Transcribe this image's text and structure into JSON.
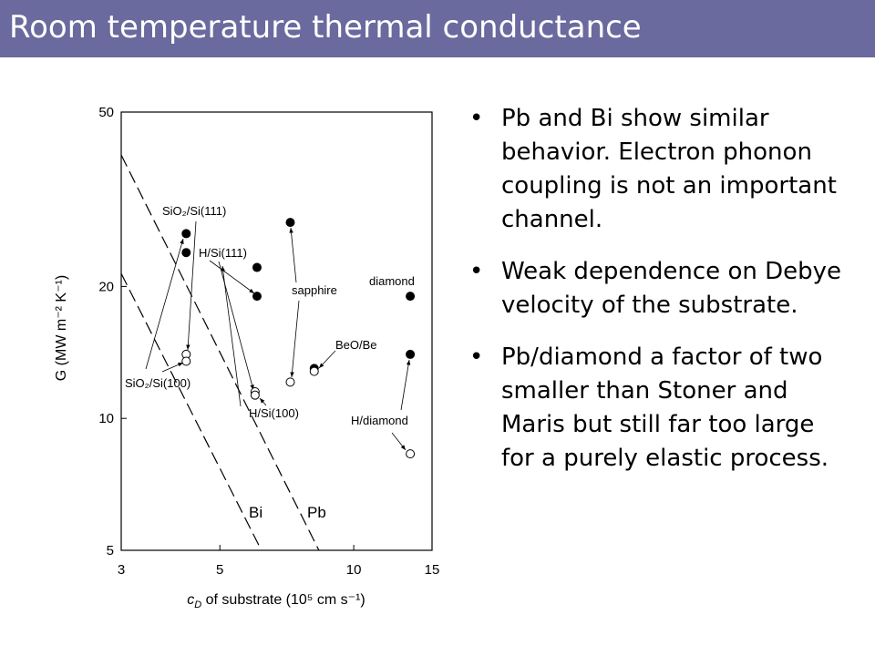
{
  "slide": {
    "title": "Room temperature thermal conductance",
    "bullets": [
      "Pb and Bi show similar behavior.  Electron phonon coupling is not an important channel.",
      "Weak dependence on Debye velocity of the substrate.",
      "Pb/diamond a factor of two smaller than Stoner and Maris but still far too large for a purely elastic process."
    ]
  },
  "chart_data": {
    "type": "scatter",
    "x_label": {
      "symbol": "c",
      "sub": "D",
      "text": " of substrate (10⁵ cm s⁻¹)"
    },
    "y_label": "G (MW m⁻² K⁻¹)",
    "xlog": true,
    "ylog": true,
    "xlim": [
      3,
      15
    ],
    "ylim": [
      5,
      50
    ],
    "xticks": [
      3,
      5,
      10,
      15
    ],
    "yticks": [
      5,
      10,
      20,
      50
    ],
    "series": [
      {
        "marker": "filled",
        "color": "#000000",
        "x": [
          4.2,
          4.2,
          6.06,
          6.06,
          7.2,
          8.15,
          13.4,
          13.4
        ],
        "values": [
          26.4,
          23.9,
          22.1,
          19.0,
          28.0,
          13.0,
          19.0,
          14.0
        ]
      },
      {
        "marker": "open",
        "color": "#000000",
        "x": [
          4.2,
          4.2,
          6.0,
          6.0,
          7.2,
          8.15,
          13.4
        ],
        "values": [
          14.0,
          13.5,
          11.5,
          11.3,
          12.1,
          12.8,
          8.3
        ]
      },
      {
        "marker": "dashed-line",
        "color": "#000000",
        "x": [
          3,
          6.2
        ],
        "values": [
          21.4,
          5
        ]
      },
      {
        "marker": "dashed-line",
        "color": "#000000",
        "x": [
          3,
          8.35
        ],
        "values": [
          39.9,
          5
        ]
      }
    ],
    "annotations": [
      "SiO₂/Si(111)",
      "H/Si(111)",
      "sapphire",
      "diamond",
      "BeO/Be",
      "SiO₂/Si(100)",
      "H/Si(100)",
      "H/diamond",
      "Bi",
      "Pb"
    ]
  }
}
